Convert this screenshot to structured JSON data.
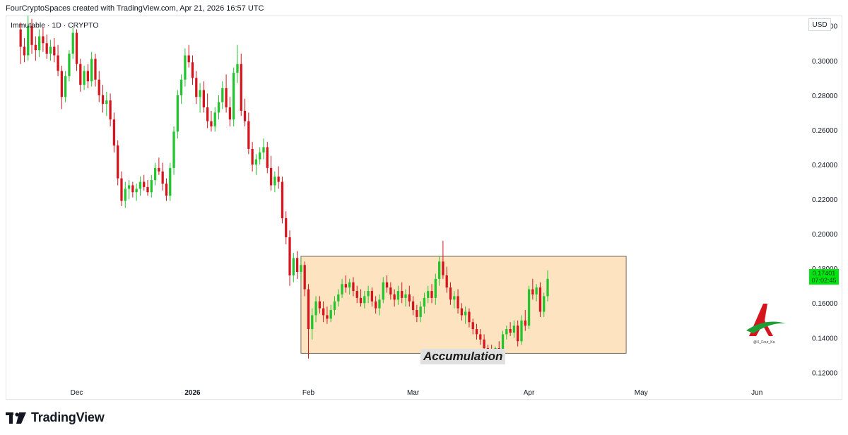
{
  "header": {
    "credit": "FourCryptoSpaces created with TradingView.com, Apr 21, 2026 16:57 UTC"
  },
  "symbol": "Immutable · 1D · CRYPTO",
  "currency": "USD",
  "price_badge": {
    "price": "0.17401",
    "countdown": "07:02:45"
  },
  "footer": {
    "brand": "TradingView"
  },
  "zone": {
    "label": "Accumulation",
    "fill": "#fde3c0",
    "high": 0.187,
    "low": 0.131,
    "x_start": "2026-01-30",
    "x_end": "2026-04-27"
  },
  "colors": {
    "up": "#22c52d",
    "down": "#d4151d",
    "badge": "#00e60f"
  },
  "watermark": {
    "text": "@X_Four_Ka"
  },
  "chart_data": {
    "type": "candlestick",
    "title": "Immutable · 1D · CRYPTO",
    "ylim": [
      0.112,
      0.326
    ],
    "xlim": [
      "2025-11-12",
      "2026-06-14"
    ],
    "yticks": [
      "0.12000",
      "0.14000",
      "0.16000",
      "0.18000",
      "0.20000",
      "0.22000",
      "0.24000",
      "0.26000",
      "0.28000",
      "0.30000",
      "0.32000"
    ],
    "xticks": [
      {
        "label": "Dec",
        "date": "2025-12-01",
        "bold": false
      },
      {
        "label": "2026",
        "date": "2026-01-01",
        "bold": true
      },
      {
        "label": "Feb",
        "date": "2026-02-01",
        "bold": false
      },
      {
        "label": "Mar",
        "date": "2026-03-01",
        "bold": false
      },
      {
        "label": "Apr",
        "date": "2026-04-01",
        "bold": false
      },
      {
        "label": "May",
        "date": "2026-05-01",
        "bold": false
      },
      {
        "label": "Jun",
        "date": "2026-06-01",
        "bold": false
      }
    ],
    "series_start": "2025-11-16",
    "ohlc": [
      [
        0.318,
        0.322,
        0.298,
        0.308
      ],
      [
        0.308,
        0.313,
        0.299,
        0.303
      ],
      [
        0.303,
        0.326,
        0.3,
        0.32
      ],
      [
        0.32,
        0.324,
        0.304,
        0.309
      ],
      [
        0.309,
        0.314,
        0.3,
        0.306
      ],
      [
        0.306,
        0.318,
        0.302,
        0.314
      ],
      [
        0.314,
        0.319,
        0.305,
        0.31
      ],
      [
        0.31,
        0.315,
        0.301,
        0.304
      ],
      [
        0.304,
        0.312,
        0.3,
        0.308
      ],
      [
        0.308,
        0.313,
        0.299,
        0.303
      ],
      [
        0.303,
        0.309,
        0.291,
        0.294
      ],
      [
        0.294,
        0.297,
        0.272,
        0.279
      ],
      [
        0.279,
        0.294,
        0.276,
        0.291
      ],
      [
        0.291,
        0.306,
        0.288,
        0.304
      ],
      [
        0.304,
        0.319,
        0.301,
        0.316
      ],
      [
        0.316,
        0.318,
        0.294,
        0.298
      ],
      [
        0.298,
        0.301,
        0.282,
        0.286
      ],
      [
        0.286,
        0.297,
        0.283,
        0.294
      ],
      [
        0.294,
        0.298,
        0.284,
        0.288
      ],
      [
        0.288,
        0.305,
        0.285,
        0.301
      ],
      [
        0.301,
        0.304,
        0.285,
        0.289
      ],
      [
        0.289,
        0.294,
        0.276,
        0.28
      ],
      [
        0.28,
        0.286,
        0.27,
        0.275
      ],
      [
        0.275,
        0.282,
        0.268,
        0.277
      ],
      [
        0.277,
        0.281,
        0.262,
        0.266
      ],
      [
        0.266,
        0.27,
        0.247,
        0.251
      ],
      [
        0.251,
        0.254,
        0.228,
        0.232
      ],
      [
        0.232,
        0.236,
        0.216,
        0.219
      ],
      [
        0.219,
        0.23,
        0.215,
        0.226
      ],
      [
        0.226,
        0.231,
        0.22,
        0.228
      ],
      [
        0.228,
        0.23,
        0.221,
        0.224
      ],
      [
        0.224,
        0.229,
        0.219,
        0.226
      ],
      [
        0.226,
        0.233,
        0.222,
        0.23
      ],
      [
        0.23,
        0.234,
        0.225,
        0.227
      ],
      [
        0.227,
        0.231,
        0.222,
        0.224
      ],
      [
        0.224,
        0.234,
        0.221,
        0.231
      ],
      [
        0.231,
        0.241,
        0.228,
        0.238
      ],
      [
        0.238,
        0.244,
        0.234,
        0.236
      ],
      [
        0.236,
        0.241,
        0.225,
        0.229
      ],
      [
        0.229,
        0.232,
        0.219,
        0.222
      ],
      [
        0.222,
        0.241,
        0.219,
        0.238
      ],
      [
        0.238,
        0.262,
        0.234,
        0.259
      ],
      [
        0.259,
        0.283,
        0.255,
        0.28
      ],
      [
        0.28,
        0.292,
        0.275,
        0.289
      ],
      [
        0.289,
        0.307,
        0.285,
        0.303
      ],
      [
        0.303,
        0.309,
        0.296,
        0.299
      ],
      [
        0.299,
        0.303,
        0.286,
        0.29
      ],
      [
        0.29,
        0.294,
        0.275,
        0.279
      ],
      [
        0.279,
        0.287,
        0.27,
        0.283
      ],
      [
        0.283,
        0.288,
        0.27,
        0.273
      ],
      [
        0.273,
        0.281,
        0.261,
        0.265
      ],
      [
        0.265,
        0.271,
        0.259,
        0.262
      ],
      [
        0.262,
        0.273,
        0.259,
        0.27
      ],
      [
        0.27,
        0.28,
        0.266,
        0.276
      ],
      [
        0.276,
        0.288,
        0.272,
        0.284
      ],
      [
        0.284,
        0.292,
        0.27,
        0.273
      ],
      [
        0.273,
        0.279,
        0.262,
        0.266
      ],
      [
        0.266,
        0.296,
        0.262,
        0.293
      ],
      [
        0.293,
        0.309,
        0.287,
        0.298
      ],
      [
        0.298,
        0.304,
        0.268,
        0.271
      ],
      [
        0.271,
        0.278,
        0.262,
        0.265
      ],
      [
        0.265,
        0.27,
        0.246,
        0.249
      ],
      [
        0.249,
        0.253,
        0.236,
        0.24
      ],
      [
        0.24,
        0.246,
        0.234,
        0.243
      ],
      [
        0.243,
        0.25,
        0.24,
        0.247
      ],
      [
        0.247,
        0.255,
        0.243,
        0.25
      ],
      [
        0.25,
        0.253,
        0.235,
        0.238
      ],
      [
        0.238,
        0.245,
        0.225,
        0.228
      ],
      [
        0.228,
        0.236,
        0.224,
        0.233
      ],
      [
        0.233,
        0.239,
        0.226,
        0.23
      ],
      [
        0.23,
        0.233,
        0.206,
        0.209
      ],
      [
        0.209,
        0.213,
        0.194,
        0.198
      ],
      [
        0.198,
        0.202,
        0.17,
        0.176
      ],
      [
        0.176,
        0.189,
        0.172,
        0.186
      ],
      [
        0.186,
        0.19,
        0.174,
        0.178
      ],
      [
        0.178,
        0.186,
        0.173,
        0.182
      ],
      [
        0.182,
        0.184,
        0.164,
        0.168
      ],
      [
        0.168,
        0.171,
        0.128,
        0.145
      ],
      [
        0.145,
        0.157,
        0.139,
        0.153
      ],
      [
        0.153,
        0.164,
        0.149,
        0.161
      ],
      [
        0.161,
        0.164,
        0.154,
        0.157
      ],
      [
        0.157,
        0.161,
        0.149,
        0.153
      ],
      [
        0.153,
        0.158,
        0.148,
        0.151
      ],
      [
        0.151,
        0.159,
        0.149,
        0.156
      ],
      [
        0.156,
        0.164,
        0.153,
        0.161
      ],
      [
        0.161,
        0.168,
        0.158,
        0.165
      ],
      [
        0.165,
        0.174,
        0.163,
        0.171
      ],
      [
        0.171,
        0.176,
        0.166,
        0.169
      ],
      [
        0.169,
        0.174,
        0.165,
        0.172
      ],
      [
        0.172,
        0.175,
        0.164,
        0.167
      ],
      [
        0.167,
        0.17,
        0.16,
        0.163
      ],
      [
        0.163,
        0.168,
        0.158,
        0.16
      ],
      [
        0.16,
        0.167,
        0.157,
        0.164
      ],
      [
        0.164,
        0.17,
        0.16,
        0.167
      ],
      [
        0.167,
        0.169,
        0.158,
        0.161
      ],
      [
        0.161,
        0.164,
        0.154,
        0.157
      ],
      [
        0.157,
        0.165,
        0.153,
        0.162
      ],
      [
        0.162,
        0.175,
        0.16,
        0.172
      ],
      [
        0.172,
        0.176,
        0.166,
        0.169
      ],
      [
        0.169,
        0.172,
        0.162,
        0.165
      ],
      [
        0.165,
        0.168,
        0.158,
        0.162
      ],
      [
        0.162,
        0.17,
        0.159,
        0.167
      ],
      [
        0.167,
        0.172,
        0.16,
        0.163
      ],
      [
        0.163,
        0.168,
        0.158,
        0.165
      ],
      [
        0.165,
        0.17,
        0.158,
        0.161
      ],
      [
        0.161,
        0.164,
        0.153,
        0.156
      ],
      [
        0.156,
        0.159,
        0.149,
        0.152
      ],
      [
        0.152,
        0.161,
        0.149,
        0.158
      ],
      [
        0.158,
        0.166,
        0.154,
        0.163
      ],
      [
        0.163,
        0.17,
        0.16,
        0.167
      ],
      [
        0.167,
        0.171,
        0.16,
        0.163
      ],
      [
        0.163,
        0.177,
        0.159,
        0.174
      ],
      [
        0.174,
        0.187,
        0.17,
        0.184
      ],
      [
        0.184,
        0.196,
        0.174,
        0.176
      ],
      [
        0.176,
        0.181,
        0.166,
        0.169
      ],
      [
        0.169,
        0.172,
        0.159,
        0.162
      ],
      [
        0.162,
        0.167,
        0.157,
        0.164
      ],
      [
        0.164,
        0.168,
        0.154,
        0.157
      ],
      [
        0.157,
        0.16,
        0.15,
        0.153
      ],
      [
        0.153,
        0.158,
        0.148,
        0.155
      ],
      [
        0.155,
        0.157,
        0.146,
        0.149
      ],
      [
        0.149,
        0.151,
        0.142,
        0.145
      ],
      [
        0.145,
        0.148,
        0.139,
        0.142
      ],
      [
        0.142,
        0.145,
        0.136,
        0.139
      ],
      [
        0.139,
        0.142,
        0.131,
        0.134
      ],
      [
        0.134,
        0.136,
        0.131,
        0.133
      ],
      [
        0.133,
        0.136,
        0.13,
        0.132
      ],
      [
        0.132,
        0.135,
        0.129,
        0.134
      ],
      [
        0.134,
        0.138,
        0.131,
        0.133
      ],
      [
        0.133,
        0.144,
        0.131,
        0.142
      ],
      [
        0.142,
        0.147,
        0.139,
        0.145
      ],
      [
        0.145,
        0.149,
        0.141,
        0.143
      ],
      [
        0.143,
        0.15,
        0.14,
        0.147
      ],
      [
        0.147,
        0.15,
        0.135,
        0.138
      ],
      [
        0.138,
        0.153,
        0.136,
        0.15
      ],
      [
        0.15,
        0.156,
        0.144,
        0.147
      ],
      [
        0.147,
        0.17,
        0.145,
        0.168
      ],
      [
        0.168,
        0.174,
        0.162,
        0.165
      ],
      [
        0.165,
        0.171,
        0.161,
        0.169
      ],
      [
        0.169,
        0.172,
        0.152,
        0.155
      ],
      [
        0.155,
        0.166,
        0.152,
        0.164
      ],
      [
        0.164,
        0.179,
        0.161,
        0.174
      ]
    ]
  }
}
